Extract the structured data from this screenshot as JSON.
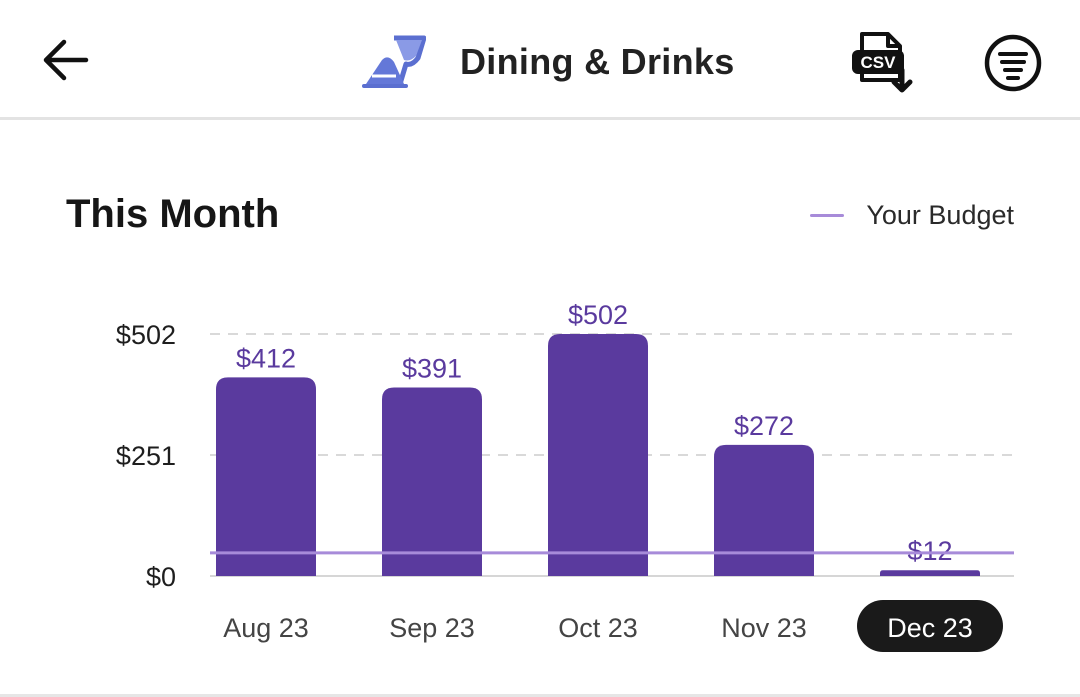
{
  "header": {
    "back_label": "Back",
    "title": "Dining & Drinks",
    "csv_label": "CSV"
  },
  "section": {
    "title": "This Month",
    "legend_label": "Your Budget"
  },
  "colors": {
    "bar": "#5a3a9e",
    "budget_line": "#a78bd9",
    "value_label": "#5a3a9e",
    "selected_pill": "#1a1a1a"
  },
  "chart_data": {
    "type": "bar",
    "categories": [
      "Aug 23",
      "Sep 23",
      "Oct 23",
      "Nov 23",
      "Dec 23"
    ],
    "values": [
      412,
      391,
      502,
      272,
      12
    ],
    "value_labels": [
      "$412",
      "$391",
      "$502",
      "$272",
      "$12"
    ],
    "y_ticks": [
      0,
      251,
      502
    ],
    "y_tick_labels": [
      "$0",
      "$251",
      "$502"
    ],
    "ylim": [
      0,
      502
    ],
    "budget": 48,
    "selected_category": "Dec 23",
    "grid": true,
    "legend_position": "top-right"
  }
}
